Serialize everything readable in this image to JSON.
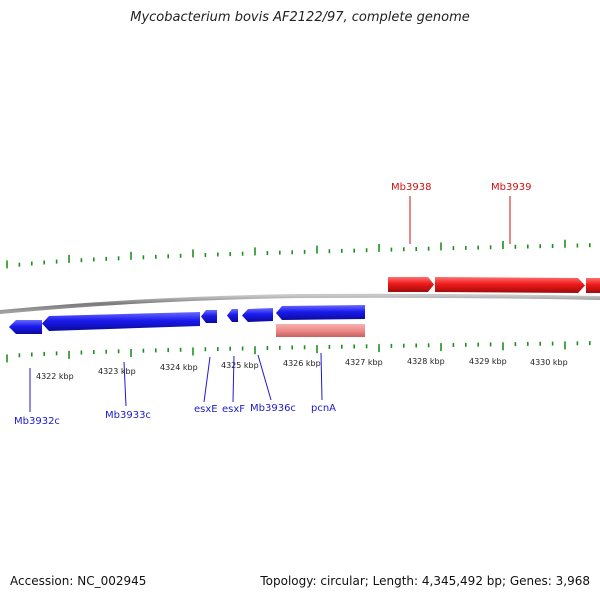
{
  "title": "Mycobacterium bovis AF2122/97, complete genome",
  "footer": {
    "accession": "Accession: NC_002945",
    "summary": "Topology: circular; Length: 4,345,492 bp; Genes: 3,968"
  },
  "colors": {
    "forward_gene": "#ff1a1a",
    "reverse_gene": "#1a1aee",
    "rna_feature": "#f08a8a",
    "backbone": "#8a8a8a",
    "tick": "#1f8f1f"
  },
  "scale": {
    "ticks": [
      "4322 kbp",
      "4323 kbp",
      "4324 kbp",
      "4325 kbp",
      "4326 kbp",
      "4327 kbp",
      "4328 kbp",
      "4329 kbp",
      "4330 kbp"
    ]
  },
  "genes": {
    "reverse": [
      "Mb3932c",
      "Mb3933c",
      "esxE",
      "esxF",
      "Mb3936c",
      "pcnA"
    ],
    "forward": [
      "Mb3938",
      "Mb3939"
    ]
  }
}
